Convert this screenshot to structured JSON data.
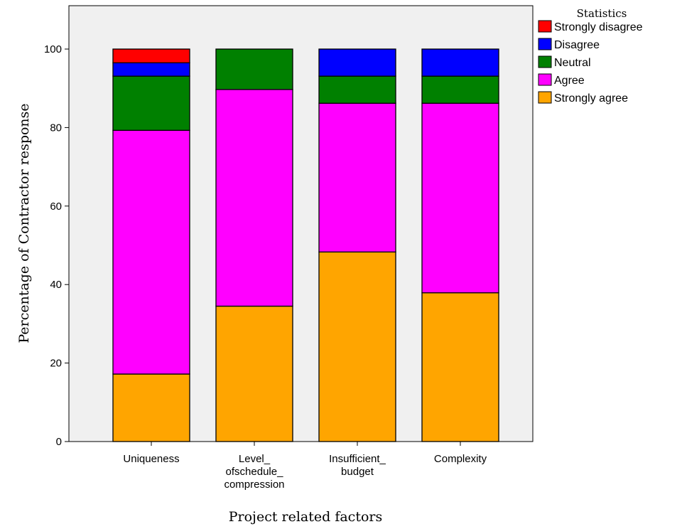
{
  "chart_data": {
    "type": "bar",
    "stacked": true,
    "title": "",
    "xlabel": "Project related factors",
    "ylabel": "Percentage of Contractor response",
    "ylim": [
      0,
      110
    ],
    "yticks": [
      0,
      20,
      40,
      60,
      80,
      100
    ],
    "grid": false,
    "legend_title": "Statistics",
    "legend_position": "top-right",
    "categories": [
      [
        "Uniqueness"
      ],
      [
        "Level_",
        "ofschedule_",
        "compression"
      ],
      [
        "Insufficient_",
        "budget"
      ],
      [
        "Complexity"
      ]
    ],
    "series": [
      {
        "name": "Strongly agree",
        "color": "#ffa500",
        "values": [
          17.2,
          34.5,
          48.3,
          37.9
        ]
      },
      {
        "name": "Agree",
        "color": "#ff00ff",
        "values": [
          62.1,
          55.2,
          37.9,
          48.3
        ]
      },
      {
        "name": "Neutral",
        "color": "#008000",
        "values": [
          13.8,
          10.3,
          6.9,
          6.9
        ]
      },
      {
        "name": "Disagree",
        "color": "#0000ff",
        "values": [
          3.4,
          0,
          6.9,
          6.9
        ]
      },
      {
        "name": "Strongly disagree",
        "color": "#ff0000",
        "values": [
          3.5,
          0,
          0,
          0
        ]
      }
    ],
    "legend_order": [
      "Strongly disagree",
      "Disagree",
      "Neutral",
      "Agree",
      "Strongly agree"
    ],
    "plot_background": "#f0f0f0"
  }
}
